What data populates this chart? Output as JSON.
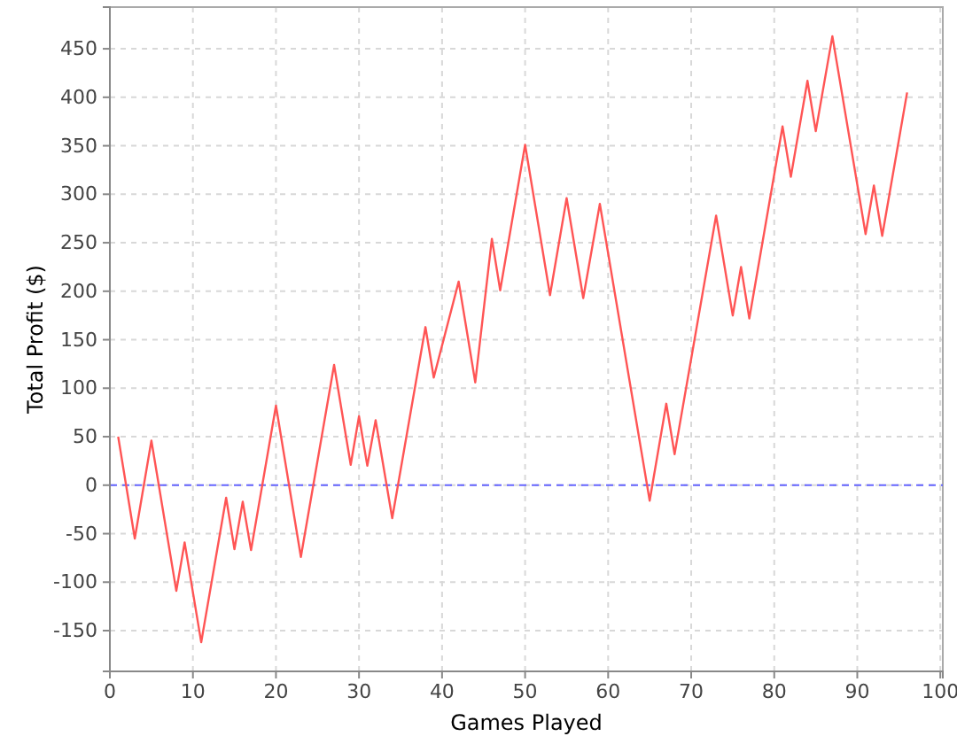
{
  "chart_data": {
    "type": "line",
    "xlabel": "Games Played",
    "ylabel": "Total Profit ($)",
    "xlim": [
      0,
      100.3
    ],
    "xticks": [
      0,
      10,
      20,
      30,
      40,
      50,
      60,
      70,
      80,
      90,
      100
    ],
    "ylim": [
      -192,
      493
    ],
    "yticks": [
      -150,
      -100,
      -50,
      0,
      50,
      100,
      150,
      200,
      250,
      300,
      350,
      400,
      450
    ],
    "grid": true,
    "marker": "none",
    "line_style": "solid",
    "ref_lines": [
      {
        "axis": "y",
        "value": 0,
        "color": "#6666ff",
        "line_style": "dashed"
      }
    ],
    "series": [
      {
        "color": "#ff5555",
        "x": [
          1,
          3,
          5,
          8,
          9,
          11,
          14,
          15,
          16,
          17,
          20,
          23,
          27,
          29,
          30,
          31,
          32,
          34,
          38,
          39,
          42,
          44,
          46,
          47,
          50,
          53,
          55,
          57,
          59,
          65,
          67,
          68,
          73,
          75,
          76,
          77,
          81,
          82,
          84,
          85,
          87,
          91,
          92,
          93,
          96
        ],
        "values": [
          50,
          -55,
          46,
          -109,
          -59,
          -162,
          -13,
          -66,
          -17,
          -67,
          82,
          -74,
          124,
          21,
          71,
          20,
          67,
          -34,
          163,
          111,
          210,
          106,
          254,
          201,
          351,
          196,
          296,
          193,
          290,
          -16,
          84,
          32,
          278,
          175,
          225,
          172,
          370,
          318,
          417,
          365,
          463,
          259,
          309,
          257,
          405
        ]
      }
    ]
  }
}
